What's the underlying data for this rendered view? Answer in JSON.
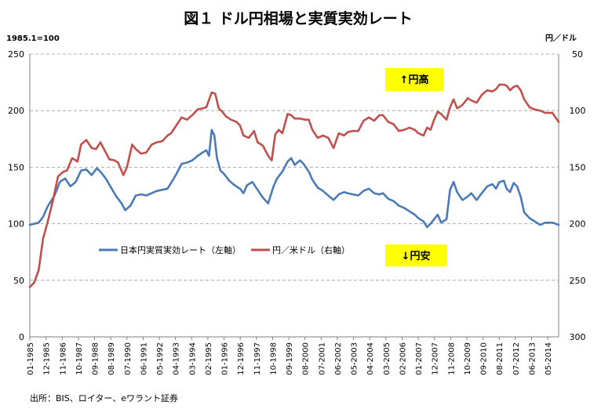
{
  "chart_data": {
    "type": "line",
    "title": "図１ ドル円相場と実質実効レート",
    "left_axis_unit": "1985.1=100",
    "right_axis_unit": "円／ドル",
    "y_left": {
      "min": 0,
      "max": 250,
      "ticks": [
        0,
        50,
        100,
        150,
        200,
        250
      ]
    },
    "y_right": {
      "min": 50,
      "max": 300,
      "inverted": true,
      "ticks": [
        50,
        100,
        150,
        200,
        250,
        300
      ]
    },
    "grid": "horizontal dashed",
    "x_ticks": [
      "01-1985",
      "12-1985",
      "11-1986",
      "10-1987",
      "09-1988",
      "08-1989",
      "07-1990",
      "06-1991",
      "05-1992",
      "04-1993",
      "03-1994",
      "02-1995",
      "01-1996",
      "12-1996",
      "11-1997",
      "10-1998",
      "09-1999",
      "08-2000",
      "07-2001",
      "06-2002",
      "05-2003",
      "04-2004",
      "03-2005",
      "02-2006",
      "01-2007",
      "12-2007",
      "11-2008",
      "10-2009",
      "09-2010",
      "08-2011",
      "07-2012",
      "06-2013",
      "05-2014"
    ],
    "x_range": [
      "01-1985",
      "12-2014"
    ],
    "series": [
      {
        "name": "日本円実質実効レート（左軸）",
        "axis": "left",
        "color": "#4a7ab8",
        "points": [
          [
            1985.0,
            99
          ],
          [
            1985.5,
            101
          ],
          [
            1985.75,
            106
          ],
          [
            1986.0,
            115
          ],
          [
            1986.4,
            125
          ],
          [
            1986.7,
            137
          ],
          [
            1987.0,
            140
          ],
          [
            1987.3,
            133
          ],
          [
            1987.6,
            137
          ],
          [
            1987.9,
            147
          ],
          [
            1988.2,
            148
          ],
          [
            1988.5,
            143
          ],
          [
            1988.8,
            149
          ],
          [
            1989.0,
            146
          ],
          [
            1989.3,
            140
          ],
          [
            1989.6,
            132
          ],
          [
            1989.9,
            124
          ],
          [
            1990.2,
            118
          ],
          [
            1990.4,
            112
          ],
          [
            1990.7,
            116
          ],
          [
            1991.0,
            125
          ],
          [
            1991.3,
            126
          ],
          [
            1991.6,
            125
          ],
          [
            1991.9,
            127
          ],
          [
            1992.2,
            129
          ],
          [
            1992.5,
            130
          ],
          [
            1992.8,
            131
          ],
          [
            1993.0,
            136
          ],
          [
            1993.3,
            144
          ],
          [
            1993.6,
            153
          ],
          [
            1993.9,
            154
          ],
          [
            1994.2,
            156
          ],
          [
            1994.5,
            160
          ],
          [
            1994.8,
            163
          ],
          [
            1995.0,
            165
          ],
          [
            1995.15,
            160
          ],
          [
            1995.3,
            183
          ],
          [
            1995.45,
            178
          ],
          [
            1995.6,
            158
          ],
          [
            1995.8,
            147
          ],
          [
            1996.0,
            144
          ],
          [
            1996.3,
            138
          ],
          [
            1996.6,
            134
          ],
          [
            1996.9,
            131
          ],
          [
            1997.1,
            127
          ],
          [
            1997.3,
            134
          ],
          [
            1997.6,
            137
          ],
          [
            1997.9,
            130
          ],
          [
            1998.2,
            123
          ],
          [
            1998.5,
            118
          ],
          [
            1998.8,
            133
          ],
          [
            1999.0,
            140
          ],
          [
            1999.3,
            146
          ],
          [
            1999.6,
            155
          ],
          [
            1999.8,
            158
          ],
          [
            2000.0,
            152
          ],
          [
            2000.3,
            156
          ],
          [
            2000.5,
            153
          ],
          [
            2000.8,
            146
          ],
          [
            2001.0,
            139
          ],
          [
            2001.3,
            132
          ],
          [
            2001.6,
            129
          ],
          [
            2001.9,
            125
          ],
          [
            2002.2,
            121
          ],
          [
            2002.5,
            126
          ],
          [
            2002.8,
            128
          ],
          [
            2003.0,
            127
          ],
          [
            2003.3,
            126
          ],
          [
            2003.6,
            125
          ],
          [
            2003.9,
            129
          ],
          [
            2004.2,
            131
          ],
          [
            2004.5,
            127
          ],
          [
            2004.8,
            126
          ],
          [
            2005.0,
            127
          ],
          [
            2005.3,
            122
          ],
          [
            2005.6,
            120
          ],
          [
            2005.9,
            116
          ],
          [
            2006.2,
            114
          ],
          [
            2006.5,
            111
          ],
          [
            2006.8,
            108
          ],
          [
            2007.0,
            105
          ],
          [
            2007.3,
            102
          ],
          [
            2007.5,
            97
          ],
          [
            2007.7,
            100
          ],
          [
            2007.9,
            104
          ],
          [
            2008.1,
            108
          ],
          [
            2008.3,
            101
          ],
          [
            2008.6,
            104
          ],
          [
            2008.8,
            130
          ],
          [
            2009.0,
            137
          ],
          [
            2009.2,
            128
          ],
          [
            2009.5,
            121
          ],
          [
            2009.8,
            124
          ],
          [
            2010.0,
            127
          ],
          [
            2010.3,
            121
          ],
          [
            2010.6,
            127
          ],
          [
            2010.9,
            133
          ],
          [
            2011.2,
            135
          ],
          [
            2011.4,
            131
          ],
          [
            2011.6,
            137
          ],
          [
            2011.85,
            138
          ],
          [
            2012.0,
            131
          ],
          [
            2012.2,
            128
          ],
          [
            2012.4,
            136
          ],
          [
            2012.6,
            133
          ],
          [
            2012.8,
            124
          ],
          [
            2013.0,
            110
          ],
          [
            2013.3,
            105
          ],
          [
            2013.6,
            102
          ],
          [
            2013.9,
            99
          ],
          [
            2014.2,
            101
          ],
          [
            2014.6,
            101
          ],
          [
            2014.95,
            99
          ]
        ]
      },
      {
        "name": "円／米ドル（右軸）",
        "axis": "right",
        "color": "#c0504d",
        "points": [
          [
            1985.0,
            256
          ],
          [
            1985.25,
            252
          ],
          [
            1985.5,
            241
          ],
          [
            1985.75,
            213
          ],
          [
            1986.0,
            199
          ],
          [
            1986.3,
            180
          ],
          [
            1986.6,
            158
          ],
          [
            1986.9,
            154
          ],
          [
            1987.1,
            153
          ],
          [
            1987.4,
            142
          ],
          [
            1987.7,
            145
          ],
          [
            1987.9,
            130
          ],
          [
            1988.2,
            126
          ],
          [
            1988.5,
            133
          ],
          [
            1988.75,
            134
          ],
          [
            1989.0,
            128
          ],
          [
            1989.3,
            137
          ],
          [
            1989.5,
            143
          ],
          [
            1989.8,
            144
          ],
          [
            1990.0,
            146
          ],
          [
            1990.3,
            157
          ],
          [
            1990.5,
            150
          ],
          [
            1990.8,
            130
          ],
          [
            1991.0,
            134
          ],
          [
            1991.3,
            138
          ],
          [
            1991.6,
            137
          ],
          [
            1991.9,
            130
          ],
          [
            1992.2,
            128
          ],
          [
            1992.5,
            127
          ],
          [
            1992.8,
            122
          ],
          [
            1993.0,
            120
          ],
          [
            1993.3,
            113
          ],
          [
            1993.6,
            106
          ],
          [
            1993.9,
            108
          ],
          [
            1994.2,
            104
          ],
          [
            1994.5,
            99
          ],
          [
            1994.8,
            98
          ],
          [
            1995.0,
            97
          ],
          [
            1995.3,
            84
          ],
          [
            1995.5,
            85
          ],
          [
            1995.7,
            98
          ],
          [
            1995.9,
            101
          ],
          [
            1996.1,
            105
          ],
          [
            1996.4,
            108
          ],
          [
            1996.7,
            110
          ],
          [
            1996.9,
            113
          ],
          [
            1997.1,
            122
          ],
          [
            1997.4,
            124
          ],
          [
            1997.7,
            118
          ],
          [
            1997.9,
            128
          ],
          [
            1998.2,
            131
          ],
          [
            1998.5,
            140
          ],
          [
            1998.7,
            144
          ],
          [
            1998.9,
            121
          ],
          [
            1999.1,
            117
          ],
          [
            1999.3,
            120
          ],
          [
            1999.6,
            103
          ],
          [
            1999.8,
            104
          ],
          [
            2000.0,
            107
          ],
          [
            2000.3,
            107
          ],
          [
            2000.6,
            108
          ],
          [
            2000.8,
            108
          ],
          [
            2001.0,
            117
          ],
          [
            2001.3,
            124
          ],
          [
            2001.6,
            122
          ],
          [
            2001.9,
            124
          ],
          [
            2002.2,
            133
          ],
          [
            2002.5,
            120
          ],
          [
            2002.8,
            122
          ],
          [
            2003.0,
            119
          ],
          [
            2003.3,
            118
          ],
          [
            2003.6,
            118
          ],
          [
            2003.9,
            109
          ],
          [
            2004.2,
            106
          ],
          [
            2004.5,
            109
          ],
          [
            2004.8,
            104
          ],
          [
            2005.0,
            104
          ],
          [
            2005.3,
            110
          ],
          [
            2005.6,
            112
          ],
          [
            2005.9,
            118
          ],
          [
            2006.2,
            117
          ],
          [
            2006.5,
            115
          ],
          [
            2006.8,
            117
          ],
          [
            2007.0,
            120
          ],
          [
            2007.3,
            122
          ],
          [
            2007.5,
            115
          ],
          [
            2007.7,
            117
          ],
          [
            2007.9,
            108
          ],
          [
            2008.1,
            101
          ],
          [
            2008.3,
            103
          ],
          [
            2008.6,
            108
          ],
          [
            2008.8,
            97
          ],
          [
            2009.0,
            90
          ],
          [
            2009.2,
            98
          ],
          [
            2009.5,
            95
          ],
          [
            2009.8,
            89
          ],
          [
            2010.0,
            91
          ],
          [
            2010.3,
            93
          ],
          [
            2010.6,
            86
          ],
          [
            2010.9,
            82
          ],
          [
            2011.2,
            83
          ],
          [
            2011.4,
            81
          ],
          [
            2011.6,
            77
          ],
          [
            2011.85,
            77
          ],
          [
            2012.0,
            78
          ],
          [
            2012.2,
            82
          ],
          [
            2012.4,
            79
          ],
          [
            2012.6,
            78
          ],
          [
            2012.8,
            82
          ],
          [
            2013.0,
            90
          ],
          [
            2013.3,
            97
          ],
          [
            2013.6,
            99
          ],
          [
            2013.9,
            100
          ],
          [
            2014.2,
            102
          ],
          [
            2014.6,
            102
          ],
          [
            2014.95,
            110
          ]
        ]
      }
    ],
    "legend": {
      "placement": "middle-left",
      "items": [
        "日本円実質実効レート（左軸）",
        "円／米ドル（右軸）"
      ]
    },
    "annotations": [
      {
        "text": "↑円高",
        "background": "#ffff00",
        "near": "top-right"
      },
      {
        "text": "↓円安",
        "background": "#ffff00",
        "near": "middle-right"
      }
    ],
    "source": "出所：BIS、ロイター、eワラント証券"
  }
}
